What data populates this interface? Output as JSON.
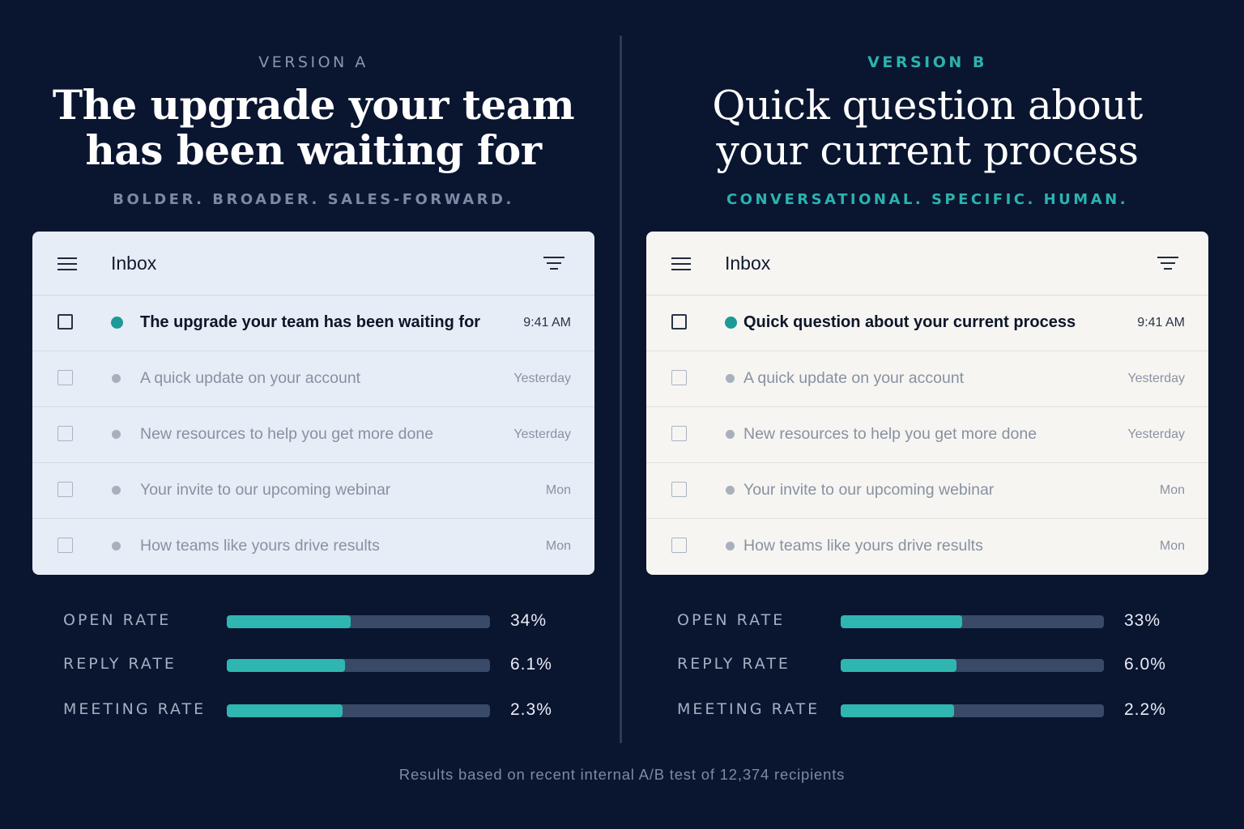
{
  "version_a": {
    "label": "VERSION A",
    "headline_line1": "The upgrade your team",
    "headline_line2": "has been waiting for",
    "tagline": "BOLDER. BROADER. SALES-FORWARD.",
    "inbox_title": "Inbox",
    "emails": [
      {
        "subject": "The upgrade your team has been waiting for",
        "time": "9:41 AM",
        "unread": true
      },
      {
        "subject": "A quick update on your account",
        "time": "Yesterday",
        "unread": false
      },
      {
        "subject": "New resources to help you get more done",
        "time": "Yesterday",
        "unread": false
      },
      {
        "subject": "Your invite to our upcoming webinar",
        "time": "Mon",
        "unread": false
      },
      {
        "subject": "How teams like yours drive results",
        "time": "Mon",
        "unread": false
      }
    ],
    "metrics": [
      {
        "label": "OPEN RATE",
        "value": "34%",
        "fill_fraction": 0.47
      },
      {
        "label": "REPLY RATE",
        "value": "6.1%",
        "fill_fraction": 0.45
      },
      {
        "label": "MEETING RATE",
        "value": "2.3%",
        "fill_fraction": 0.44
      }
    ]
  },
  "version_b": {
    "label": "VERSION B",
    "headline_line1": "Quick question about",
    "headline_line2": "your current process",
    "tagline": "CONVERSATIONAL. SPECIFIC. HUMAN.",
    "inbox_title": "Inbox",
    "emails": [
      {
        "subject": "Quick question about your current process",
        "time": "9:41 AM",
        "unread": true
      },
      {
        "subject": "A quick update on your account",
        "time": "Yesterday",
        "unread": false
      },
      {
        "subject": "New resources to help you get more done",
        "time": "Yesterday",
        "unread": false
      },
      {
        "subject": "Your invite to our upcoming webinar",
        "time": "Mon",
        "unread": false
      },
      {
        "subject": "How teams like yours drive results",
        "time": "Mon",
        "unread": false
      }
    ],
    "metrics": [
      {
        "label": "OPEN RATE",
        "value": "33%",
        "fill_fraction": 0.46
      },
      {
        "label": "REPLY RATE",
        "value": "6.0%",
        "fill_fraction": 0.44
      },
      {
        "label": "MEETING RATE",
        "value": "2.2%",
        "fill_fraction": 0.43
      }
    ]
  },
  "footnote": "Results based on recent internal A/B test of 12,374 recipients",
  "colors": {
    "background": "#0a1530",
    "accent_teal": "#2bb3ad",
    "unread_dot": "#1d9a97",
    "bar_track": "#384a67",
    "bar_fill": "#2fb6b0"
  },
  "icons": [
    "menu-icon",
    "filter-icon",
    "checkbox-icon",
    "status-dot-icon"
  ]
}
